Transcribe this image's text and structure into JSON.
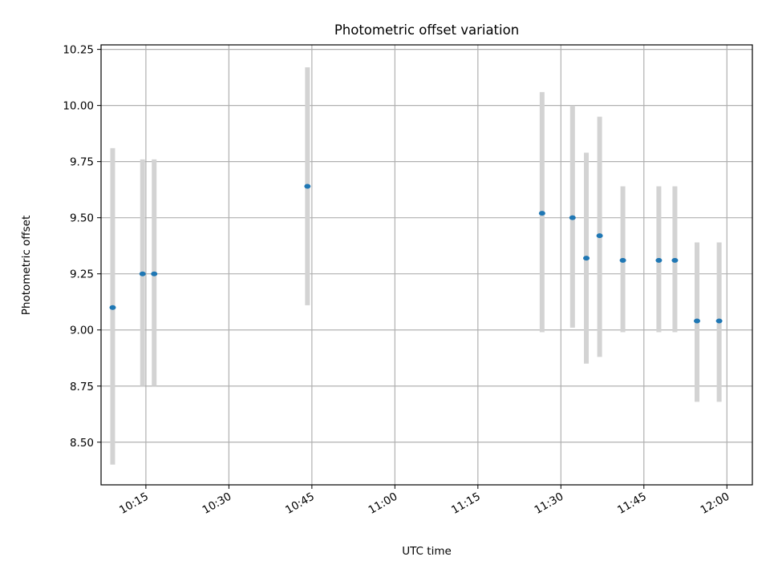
{
  "chart_data": {
    "type": "scatter",
    "title": "Photometric offset variation",
    "xlabel": "UTC time",
    "ylabel": "Photometric offset",
    "x_tick_labels": [
      "10:15",
      "10:30",
      "10:45",
      "11:00",
      "11:15",
      "11:30",
      "11:45",
      "12:00"
    ],
    "x_tick_values_min": [
      615,
      630,
      645,
      660,
      675,
      690,
      705,
      720
    ],
    "xlim_min": [
      606.9,
      724.6
    ],
    "y_ticks": [
      8.5,
      8.75,
      9.0,
      9.25,
      9.5,
      9.75,
      10.0,
      10.25
    ],
    "y_tick_labels": [
      "8.50",
      "8.75",
      "9.00",
      "9.25",
      "9.50",
      "9.75",
      "10.00",
      "10.25"
    ],
    "ylim": [
      8.31,
      10.27
    ],
    "grid": true,
    "points": [
      {
        "time": "10:09",
        "x": 609.0,
        "y": 9.1,
        "lo": 8.4,
        "hi": 9.81
      },
      {
        "time": "10:14",
        "x": 614.4,
        "y": 9.25,
        "lo": 8.75,
        "hi": 9.76
      },
      {
        "time": "10:16",
        "x": 616.5,
        "y": 9.25,
        "lo": 8.75,
        "hi": 9.76
      },
      {
        "time": "10:44",
        "x": 644.2,
        "y": 9.64,
        "lo": 9.11,
        "hi": 10.17
      },
      {
        "time": "11:26",
        "x": 686.6,
        "y": 9.52,
        "lo": 8.99,
        "hi": 10.06
      },
      {
        "time": "11:32",
        "x": 692.1,
        "y": 9.5,
        "lo": 9.01,
        "hi": 10.0
      },
      {
        "time": "11:34",
        "x": 694.6,
        "y": 9.32,
        "lo": 8.85,
        "hi": 9.79
      },
      {
        "time": "11:37",
        "x": 697.0,
        "y": 9.42,
        "lo": 8.88,
        "hi": 9.95
      },
      {
        "time": "11:41",
        "x": 701.2,
        "y": 9.31,
        "lo": 8.99,
        "hi": 9.64
      },
      {
        "time": "11:47",
        "x": 707.7,
        "y": 9.31,
        "lo": 8.99,
        "hi": 9.64
      },
      {
        "time": "11:50",
        "x": 710.6,
        "y": 9.31,
        "lo": 8.99,
        "hi": 9.64
      },
      {
        "time": "11:54",
        "x": 714.6,
        "y": 9.04,
        "lo": 8.68,
        "hi": 9.39
      },
      {
        "time": "11:58",
        "x": 718.6,
        "y": 9.04,
        "lo": 8.68,
        "hi": 9.39
      }
    ],
    "colors": {
      "point": "#1f77b4",
      "errorbar": "#d3d3d3",
      "grid": "#b0b0b0",
      "axes": "#000000"
    }
  }
}
